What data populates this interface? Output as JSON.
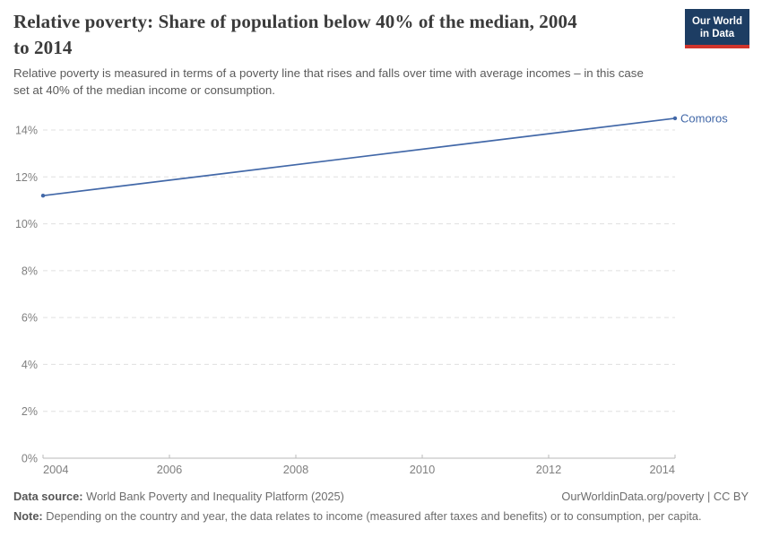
{
  "header": {
    "title": "Relative poverty: Share of population below 40% of the median, 2004\nto 2014",
    "subtitle": "Relative poverty is measured in terms of a poverty line that rises and falls over time with average incomes – in this case\nset at 40% of the median income or consumption."
  },
  "logo": {
    "line1": "Our World",
    "line2": "in Data",
    "bg_color": "#1d3d63",
    "bar_color": "#d0342c"
  },
  "chart_data": {
    "type": "line",
    "title": "Relative poverty: Share of population below 40% of the median, 2004 to 2014",
    "x_ticks": [
      2004,
      2006,
      2008,
      2010,
      2012,
      2014
    ],
    "y_ticks": [
      0,
      2,
      4,
      6,
      8,
      10,
      12,
      14
    ],
    "y_suffix": "%",
    "xlim": [
      2004,
      2014
    ],
    "ylim": [
      0,
      14
    ],
    "grid": "horizontal-dashed",
    "legend_position": "line-end-label",
    "series": [
      {
        "name": "Comoros",
        "color": "#4268a8",
        "points": [
          [
            2004,
            11.2
          ],
          [
            2014,
            14.5
          ]
        ]
      }
    ]
  },
  "footer": {
    "data_source_label": "Data source:",
    "data_source_text": "World Bank Poverty and Inequality Platform (2025)",
    "credit": "OurWorldinData.org/poverty | CC BY",
    "note_label": "Note:",
    "note_text": "Depending on the country and year, the data relates to income (measured after taxes and benefits) or to consumption, per capita."
  }
}
